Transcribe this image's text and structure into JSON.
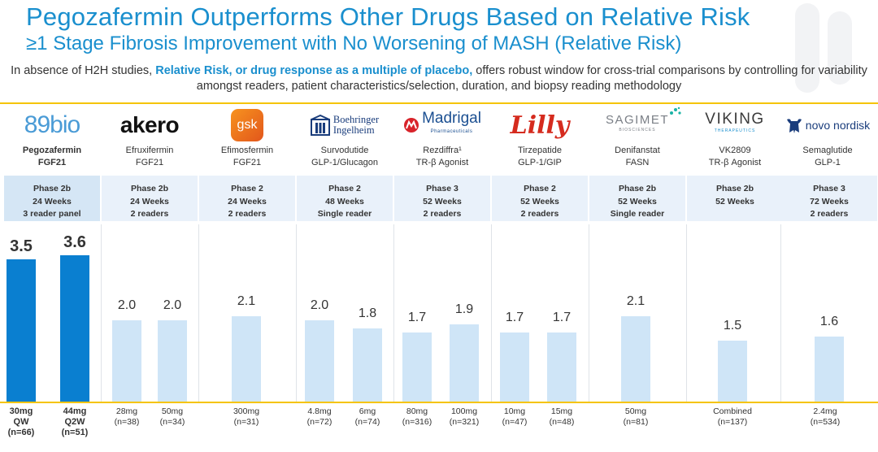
{
  "title": "Pegozafermin Outperforms Other Drugs Based on Relative Risk",
  "subtitle": "≥1 Stage Fibrosis Improvement with No Worsening of MASH (Relative Risk)",
  "intro": {
    "part1": "In absence of H2H studies, ",
    "highlight": "Relative Risk, or drug response as a multiple of placebo,",
    "part2": " offers robust window for cross-trial comparisons by controlling for variability amongst readers, patient characteristics/selection, duration, and biopsy reading methodology"
  },
  "colors": {
    "title": "#1a8fce",
    "accent_line": "#f5c400",
    "bar_primary": "#0a7fd0",
    "bar_other": "#cfe5f7"
  },
  "companies": [
    {
      "logo_text": [
        "89",
        "bio"
      ],
      "logo_icon": "89bio-logo",
      "drug": "Pegozafermin",
      "target": "FGF21",
      "design": [
        "Phase 2b",
        "24 Weeks",
        "3 reader panel"
      ]
    },
    {
      "logo_text": [
        "akero"
      ],
      "logo_icon": "akero-logo",
      "drug": "Efruxifermin",
      "target": "FGF21",
      "design": [
        "Phase 2b",
        "24 Weeks",
        "2 readers"
      ]
    },
    {
      "logo_text": [
        "gsk"
      ],
      "logo_icon": "gsk-logo",
      "drug": "Efimosfermin",
      "target": "FGF21",
      "design": [
        "Phase 2",
        "24 Weeks",
        "2 readers"
      ]
    },
    {
      "logo_text": [
        "Boehringer",
        "Ingelheim"
      ],
      "logo_icon": "boehringer-ingelheim-logo",
      "drug": "Survodutide",
      "target": "GLP-1/Glucagon",
      "design": [
        "Phase 2",
        "48 Weeks",
        "Single reader"
      ]
    },
    {
      "logo_text": [
        "Madrigal",
        "Pharmaceuticals"
      ],
      "logo_icon": "madrigal-logo",
      "drug": "Rezdiffra¹",
      "target": "TR-β Agonist",
      "design": [
        "Phase 3",
        "52 Weeks",
        "2 readers"
      ]
    },
    {
      "logo_text": [
        "Lilly"
      ],
      "logo_icon": "lilly-logo",
      "drug": "Tirzepatide",
      "target": "GLP-1/GIP",
      "design": [
        "Phase 2",
        "52 Weeks",
        "2 readers"
      ]
    },
    {
      "logo_text": [
        "SAGIMET",
        "BIOSCIENCES"
      ],
      "logo_icon": "sagimet-logo",
      "drug": "Denifanstat",
      "target": "FASN",
      "design": [
        "Phase 2b",
        "52 Weeks",
        "Single reader"
      ]
    },
    {
      "logo_text": [
        "VIKING",
        "THERAPEUTICS"
      ],
      "logo_icon": "viking-logo",
      "drug": "VK2809",
      "target": "TR-β Agonist",
      "design": [
        "Phase 2b",
        "52 Weeks"
      ]
    },
    {
      "logo_text": [
        "novo nordisk"
      ],
      "logo_icon": "novo-nordisk-logo",
      "drug": "Semaglutide",
      "target": "GLP-1",
      "design": [
        "Phase 3",
        "72 Weeks",
        "2 readers"
      ]
    }
  ],
  "chart_data": {
    "type": "bar",
    "title": "",
    "xlabel": "",
    "ylabel": "",
    "ylim": [
      0,
      4
    ],
    "grid": false,
    "categories": [
      "30mg QW (n=66)",
      "44mg Q2W (n=51)",
      "28mg (n=38)",
      "50mg (n=34)",
      "300mg (n=31)",
      "4.8mg (n=72)",
      "6mg (n=74)",
      "80mg (n=316)",
      "100mg (n=321)",
      "10mg (n=47)",
      "15mg (n=48)",
      "50mg (n=81)",
      "Combined (n=137)",
      "2.4mg (n=534)"
    ],
    "values": [
      3.5,
      3.6,
      2.0,
      2.0,
      2.1,
      2.0,
      1.8,
      1.7,
      1.9,
      1.7,
      1.7,
      2.1,
      1.5,
      1.6
    ],
    "value_labels": [
      "3.5",
      "3.6",
      "2.0",
      "2.0",
      "2.1",
      "2.0",
      "1.8",
      "1.7",
      "1.9",
      "1.7",
      "1.7",
      "2.1",
      "1.5",
      "1.6"
    ],
    "group": [
      0,
      0,
      1,
      1,
      2,
      3,
      3,
      4,
      4,
      5,
      5,
      6,
      7,
      8
    ],
    "highlight": [
      true,
      true,
      false,
      false,
      false,
      false,
      false,
      false,
      false,
      false,
      false,
      false,
      false,
      false
    ],
    "doses": [
      [
        "30mg",
        "QW",
        "(n=66)"
      ],
      [
        "44mg",
        "Q2W",
        "(n=51)"
      ],
      [
        "28mg",
        "(n=38)"
      ],
      [
        "50mg",
        "(n=34)"
      ],
      [
        "300mg",
        "(n=31)"
      ],
      [
        "4.8mg",
        "(n=72)"
      ],
      [
        "6mg",
        "(n=74)"
      ],
      [
        "80mg",
        "(n=316)"
      ],
      [
        "100mg",
        "(n=321)"
      ],
      [
        "10mg",
        "(n=47)"
      ],
      [
        "15mg",
        "(n=48)"
      ],
      [
        "50mg",
        "(n=81)"
      ],
      [
        "Combined",
        "(n=137)"
      ],
      [
        "2.4mg",
        "(n=534)"
      ]
    ]
  }
}
